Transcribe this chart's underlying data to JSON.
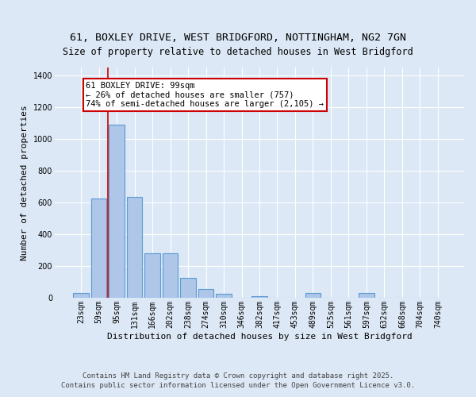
{
  "title_line1": "61, BOXLEY DRIVE, WEST BRIDGFORD, NOTTINGHAM, NG2 7GN",
  "title_line2": "Size of property relative to detached houses in West Bridgford",
  "xlabel": "Distribution of detached houses by size in West Bridgford",
  "ylabel": "Number of detached properties",
  "categories": [
    "23sqm",
    "59sqm",
    "95sqm",
    "131sqm",
    "166sqm",
    "202sqm",
    "238sqm",
    "274sqm",
    "310sqm",
    "346sqm",
    "382sqm",
    "417sqm",
    "453sqm",
    "489sqm",
    "525sqm",
    "561sqm",
    "597sqm",
    "632sqm",
    "668sqm",
    "704sqm",
    "740sqm"
  ],
  "values": [
    30,
    625,
    1090,
    635,
    280,
    280,
    125,
    55,
    25,
    0,
    10,
    0,
    0,
    30,
    0,
    0,
    30,
    0,
    0,
    0,
    0
  ],
  "bar_color": "#aec6e8",
  "bar_edge_color": "#5b9bd5",
  "background_color": "#dce8f5",
  "grid_color": "#ffffff",
  "annotation_text_line1": "61 BOXLEY DRIVE: 99sqm",
  "annotation_text_line2": "← 26% of detached houses are smaller (757)",
  "annotation_text_line3": "74% of semi-detached houses are larger (2,105) →",
  "annotation_box_facecolor": "#ffffff",
  "annotation_box_edgecolor": "#cc0000",
  "property_line_color": "#cc0000",
  "property_line_xindex": 2,
  "ylim": [
    0,
    1450
  ],
  "yticks": [
    0,
    200,
    400,
    600,
    800,
    1000,
    1200,
    1400
  ],
  "footer_line1": "Contains HM Land Registry data © Crown copyright and database right 2025.",
  "footer_line2": "Contains public sector information licensed under the Open Government Licence v3.0.",
  "title_fontsize": 9.5,
  "subtitle_fontsize": 8.5,
  "axis_label_fontsize": 8,
  "tick_fontsize": 7,
  "annotation_fontsize": 7.5,
  "footer_fontsize": 6.5
}
